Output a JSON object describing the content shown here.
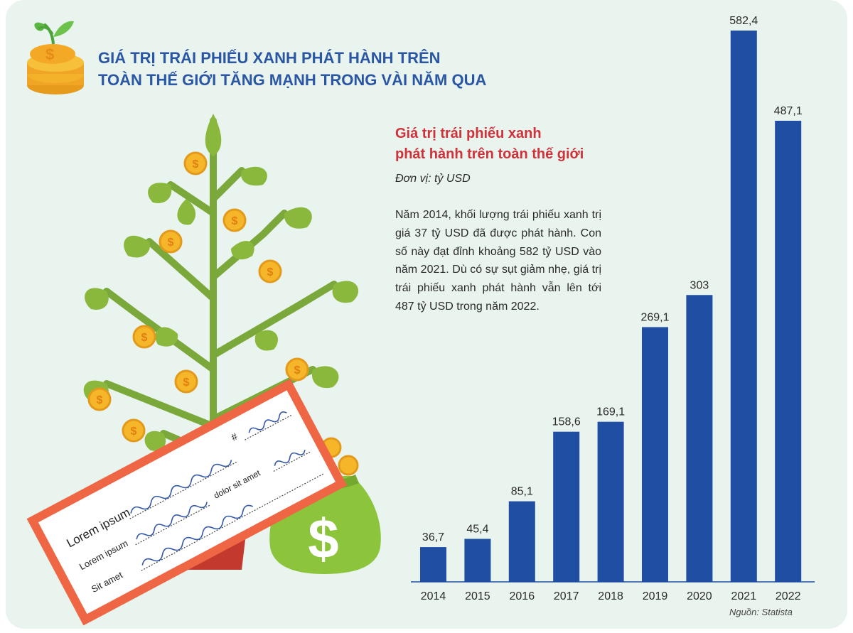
{
  "header": {
    "title_line1": "GIÁ TRỊ TRÁI PHIẾU XANH PHÁT HÀNH TRÊN",
    "title_line2": "TOÀN THẾ GIỚI TĂNG MẠNH TRONG VÀI NĂM QUA"
  },
  "chart_title_line1": "Giá trị trái phiếu xanh",
  "chart_title_line2": "phát hành trên toàn thế giới",
  "unit": "Đơn vị:  tỷ USD",
  "description": "Năm 2014, khối lượng trái phiếu xanh trị giá 37 tỷ USD đã được phát hành. Con số này đạt đỉnh khoảng 582 tỷ USD vào năm 2021. Dù có sự sụt giảm nhẹ, giá trị trái phiếu xanh phát hành vẫn lên tới 487 tỷ USD trong năm 2022.",
  "source": "Nguồn: Statista",
  "card": {
    "lines": [
      "Lorem ipsum",
      "Lorem ipsum",
      "Sit amet"
    ],
    "dolor": "dolor sit amet",
    "hash": "#"
  },
  "colors": {
    "background": "#e9f4ee",
    "title": "#2a56a4",
    "chart_title": "#d0313a",
    "bar": "#1f4ea3",
    "leaf": "#8ab83c",
    "coin": "#f5b62a"
  },
  "icons": [
    "coin-stack-icon",
    "money-tree-illustration",
    "money-bag-icon",
    "check-card-illustration"
  ],
  "chart_data": {
    "type": "bar",
    "title": "Giá trị trái phiếu xanh phát hành trên toàn thế giới",
    "ylabel": "Đơn vị:  tỷ USD",
    "categories": [
      "2014",
      "2015",
      "2016",
      "2017",
      "2018",
      "2019",
      "2020",
      "2021",
      "2022"
    ],
    "values": [
      36.7,
      45.4,
      85.1,
      158.6,
      169.1,
      269.1,
      303,
      582.4,
      487.1
    ],
    "value_labels": [
      "36,7",
      "45,4",
      "85,1",
      "158,6",
      "169,1",
      "269,1",
      "303",
      "582,4",
      "487,1"
    ],
    "ylim": [
      0,
      582.4
    ],
    "grid": false,
    "legend": "none"
  }
}
